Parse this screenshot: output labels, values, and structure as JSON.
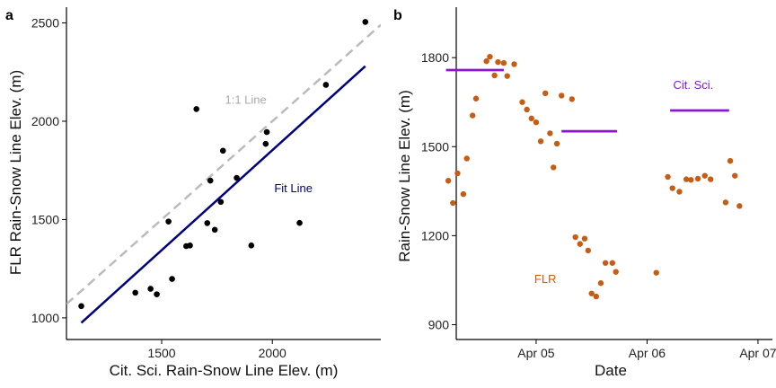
{
  "chart_data": [
    {
      "panel": "a",
      "type": "scatter",
      "xlabel": "Cit. Sci. Rain-Snow Line Elev. (m)",
      "ylabel": "FLR Rain-Snow Line Elev. (m)",
      "xlim": [
        1070,
        2490
      ],
      "ylim": [
        890,
        2580
      ],
      "x_ticks": [
        1500,
        2000
      ],
      "y_ticks": [
        1000,
        1500,
        2000,
        2500
      ],
      "points": [
        [
          1137,
          1060
        ],
        [
          1381,
          1128
        ],
        [
          1450,
          1148
        ],
        [
          1478,
          1120
        ],
        [
          1531,
          1490
        ],
        [
          1547,
          1198
        ],
        [
          1611,
          1365
        ],
        [
          1628,
          1368
        ],
        [
          1657,
          2062
        ],
        [
          1706,
          1482
        ],
        [
          1720,
          1698
        ],
        [
          1740,
          1448
        ],
        [
          1767,
          1590
        ],
        [
          1777,
          1850
        ],
        [
          1839,
          1712
        ],
        [
          1905,
          1368
        ],
        [
          1970,
          1885
        ],
        [
          1975,
          1945
        ],
        [
          2123,
          1483
        ],
        [
          2242,
          2185
        ],
        [
          2420,
          2505
        ]
      ],
      "lines": [
        {
          "name": "1:1 Line",
          "color": "#bbbbbb",
          "dashed": true,
          "x": [
            1070,
            2490
          ],
          "y": [
            1070,
            2490
          ]
        },
        {
          "name": "Fit Line",
          "color": "#00007f",
          "dashed": false,
          "x": [
            1137,
            2420
          ],
          "y": [
            975,
            2280
          ]
        }
      ],
      "annotations": [
        {
          "text": "1:1 Line",
          "x": 1880,
          "y": 2090,
          "color": "#aaaaaa"
        },
        {
          "text": "Fit Line",
          "x": 2095,
          "y": 1640,
          "color": "#00007f"
        }
      ]
    },
    {
      "panel": "b",
      "type": "scatter",
      "xlabel": "Date",
      "ylabel": "Rain-Snow Line Elev. (m)",
      "ylim": [
        850,
        1970
      ],
      "x_ticks": [
        "Apr 05",
        "Apr 06",
        "Apr 07"
      ],
      "y_ticks": [
        900,
        1200,
        1500,
        1800
      ],
      "series": [
        {
          "name": "FLR",
          "color": "#c65d14",
          "points": [
            [
              "2024-04-04 05:00",
              1385
            ],
            [
              "2024-04-04 06:00",
              1310
            ],
            [
              "2024-04-04 07:00",
              1410
            ],
            [
              "2024-04-04 08:15",
              1340
            ],
            [
              "2024-04-04 09:00",
              1460
            ],
            [
              "2024-04-04 10:15",
              1605
            ],
            [
              "2024-04-04 11:00",
              1662
            ],
            [
              "2024-04-04 13:15",
              1788
            ],
            [
              "2024-04-04 14:00",
              1803
            ],
            [
              "2024-04-04 15:00",
              1740
            ],
            [
              "2024-04-04 15:45",
              1785
            ],
            [
              "2024-04-04 17:00",
              1782
            ],
            [
              "2024-04-04 17:45",
              1738
            ],
            [
              "2024-04-04 19:15",
              1778
            ],
            [
              "2024-04-04 21:00",
              1650
            ],
            [
              "2024-04-04 22:00",
              1625
            ],
            [
              "2024-04-04 23:00",
              1595
            ],
            [
              "2024-04-05 00:00",
              1582
            ],
            [
              "2024-04-05 01:00",
              1518
            ],
            [
              "2024-04-05 02:00",
              1680
            ],
            [
              "2024-04-05 03:00",
              1545
            ],
            [
              "2024-04-05 03:45",
              1430
            ],
            [
              "2024-04-05 04:30",
              1510
            ],
            [
              "2024-04-05 05:30",
              1672
            ],
            [
              "2024-04-05 07:45",
              1660
            ],
            [
              "2024-04-05 08:30",
              1195
            ],
            [
              "2024-04-05 09:30",
              1172
            ],
            [
              "2024-04-05 10:30",
              1190
            ],
            [
              "2024-04-05 11:15",
              1150
            ],
            [
              "2024-04-05 12:00",
              1005
            ],
            [
              "2024-04-05 13:00",
              995
            ],
            [
              "2024-04-05 14:00",
              1040
            ],
            [
              "2024-04-05 15:00",
              1108
            ],
            [
              "2024-04-05 16:30",
              1108
            ],
            [
              "2024-04-05 17:15",
              1078
            ],
            [
              "2024-04-06 02:00",
              1075
            ],
            [
              "2024-04-06 04:30",
              1398
            ],
            [
              "2024-04-06 05:30",
              1360
            ],
            [
              "2024-04-06 07:00",
              1348
            ],
            [
              "2024-04-06 08:30",
              1390
            ],
            [
              "2024-04-06 09:30",
              1388
            ],
            [
              "2024-04-06 11:00",
              1392
            ],
            [
              "2024-04-06 12:30",
              1402
            ],
            [
              "2024-04-06 13:45",
              1390
            ],
            [
              "2024-04-06 17:00",
              1312
            ],
            [
              "2024-04-06 18:00",
              1452
            ],
            [
              "2024-04-06 19:00",
              1402
            ],
            [
              "2024-04-06 20:00",
              1300
            ]
          ]
        },
        {
          "name": "Cit. Sci.",
          "color": "#8b16cf",
          "segments": [
            {
              "start": "2024-04-04 04:30",
              "end": "2024-04-04 17:00",
              "y": 1758
            },
            {
              "start": "2024-04-05 05:30",
              "end": "2024-04-05 17:30",
              "y": 1552
            },
            {
              "start": "2024-04-06 05:00",
              "end": "2024-04-06 17:45",
              "y": 1622
            }
          ]
        }
      ],
      "annotations": [
        {
          "text": "FLR",
          "x": "2024-04-05 02:00",
          "y": 1040,
          "color": "#c65d14"
        },
        {
          "text": "Cit. Sci.",
          "x": "2024-04-06 10:00",
          "y": 1695,
          "color": "#8b16cf"
        }
      ]
    }
  ]
}
